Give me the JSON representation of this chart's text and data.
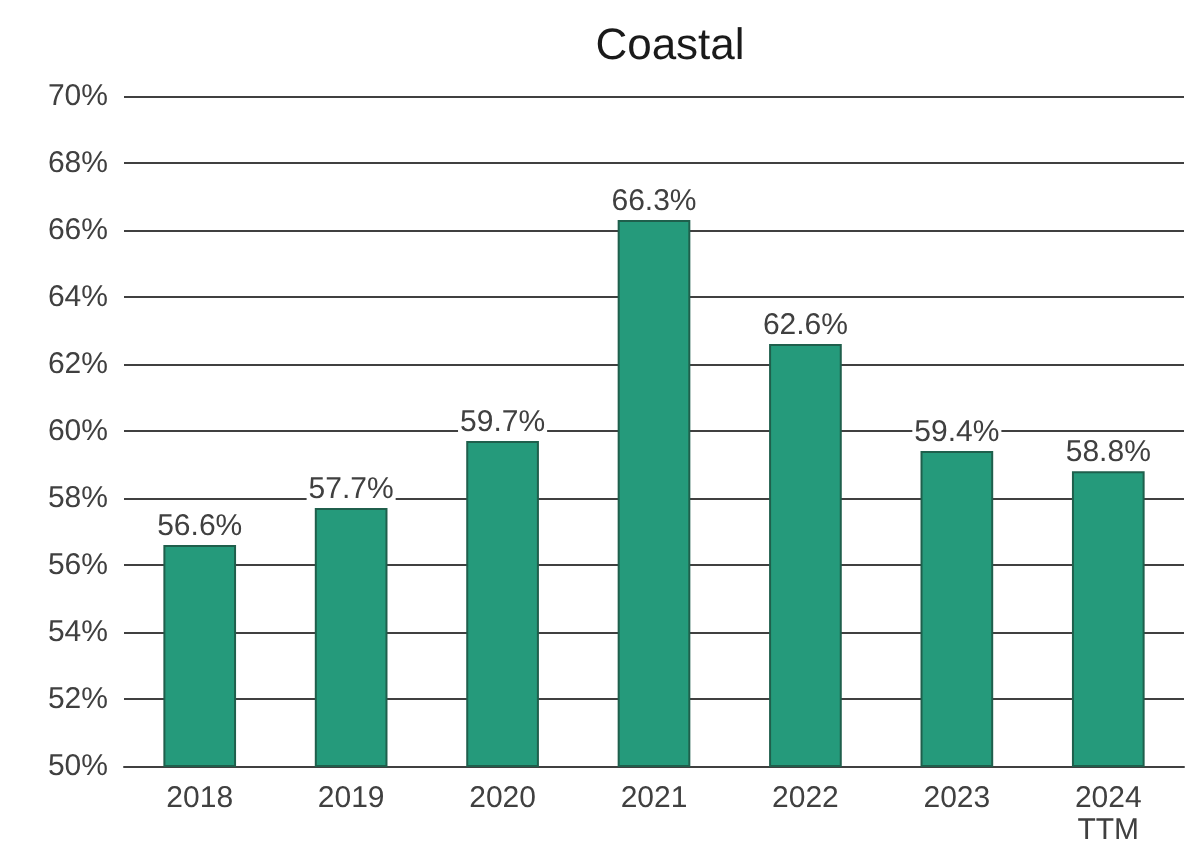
{
  "chart_data": {
    "type": "bar",
    "title": "Coastal",
    "categories": [
      "2018",
      "2019",
      "2020",
      "2021",
      "2022",
      "2023",
      "2024\nTTM"
    ],
    "values": [
      56.6,
      57.7,
      59.7,
      66.3,
      62.6,
      59.4,
      58.8
    ],
    "value_labels": [
      "56.6%",
      "57.7%",
      "59.7%",
      "66.3%",
      "62.6%",
      "59.4%",
      "58.8%"
    ],
    "color": "#259a7b",
    "ylim": [
      50,
      70
    ],
    "yticks": [
      {
        "value": 50,
        "label": "50%"
      },
      {
        "value": 52,
        "label": "52%"
      },
      {
        "value": 54,
        "label": "54%"
      },
      {
        "value": 56,
        "label": "56%"
      },
      {
        "value": 58,
        "label": "58%"
      },
      {
        "value": 60,
        "label": "60%"
      },
      {
        "value": 62,
        "label": "62%"
      },
      {
        "value": 64,
        "label": "64%"
      },
      {
        "value": 66,
        "label": "66%"
      },
      {
        "value": 68,
        "label": "68%"
      },
      {
        "value": 70,
        "label": "70%"
      }
    ],
    "grid": "y"
  }
}
